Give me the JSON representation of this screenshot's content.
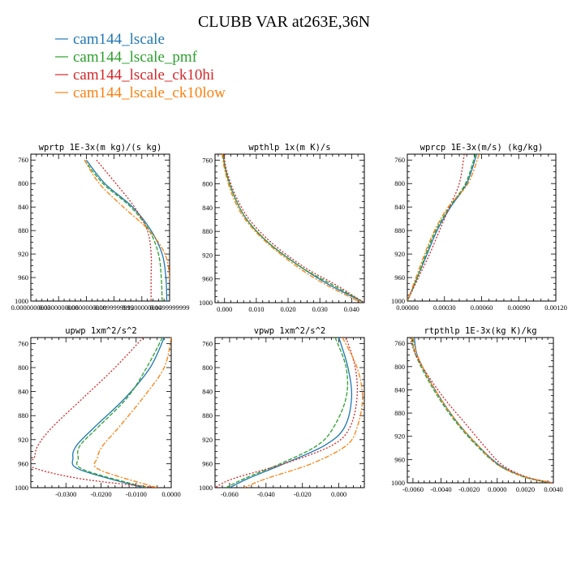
{
  "figure": {
    "title": "CLUBB VAR at263E,36N"
  },
  "colors": {
    "cam144_lscale": "#1f77b4",
    "cam144_lscale_pmf": "#2ca02c",
    "cam144_lscale_ck10hi": "#d62728",
    "cam144_lscale_ck10low": "#ff7f0e"
  },
  "legend": [
    {
      "label": "cam144_lscale",
      "color": "#1f77b4"
    },
    {
      "label": "cam144_lscale_pmf",
      "color": "#2ca02c"
    },
    {
      "label": "cam144_lscale_ck10hi",
      "color": "#d62728"
    },
    {
      "label": "cam144_lscale_ck10low",
      "color": "#ff7f0e"
    }
  ],
  "chart_data": [
    {
      "type": "line",
      "title": "wprtp  1E-3x(m kg)/(s kg)",
      "xlim": [
        0.0,
        0.15
      ],
      "ylim": [
        1000,
        750
      ],
      "x_ticks": [
        0.0,
        0.03,
        0.06,
        0.09,
        0.12,
        0.15
      ],
      "x_tick_labels": [
        "0.0000000000",
        "0.0300000000",
        "0.0600000000",
        "0.0899999999",
        "0.1200000000",
        "0.1499999999"
      ],
      "y_ticks": [
        760,
        800,
        840,
        880,
        920,
        960,
        1000
      ],
      "series": [
        {
          "name": "cam144_lscale",
          "y": [
            760,
            800,
            840,
            880,
            920,
            960,
            1000
          ],
          "x": [
            0.06,
            0.08,
            0.11,
            0.13,
            0.142,
            0.146,
            0.147
          ]
        },
        {
          "name": "cam144_lscale_pmf",
          "y": [
            760,
            800,
            840,
            880,
            920,
            960,
            1000
          ],
          "x": [
            0.058,
            0.078,
            0.108,
            0.128,
            0.138,
            0.141,
            0.142
          ]
        },
        {
          "name": "cam144_lscale_ck10hi",
          "y": [
            760,
            800,
            840,
            880,
            920,
            960,
            1000
          ],
          "x": [
            0.071,
            0.092,
            0.112,
            0.126,
            0.13,
            0.13,
            0.13
          ]
        },
        {
          "name": "cam144_lscale_ck10low",
          "y": [
            760,
            800,
            840,
            880,
            920,
            960,
            1000
          ],
          "x": [
            0.058,
            0.074,
            0.1,
            0.128,
            0.145,
            0.15,
            0.151
          ]
        }
      ]
    },
    {
      "type": "line",
      "title": "wpthlp  1x(m K)/s",
      "xlim": [
        -0.003,
        0.044
      ],
      "ylim": [
        1000,
        750
      ],
      "x_ticks": [
        0.0,
        0.01,
        0.02,
        0.03,
        0.04
      ],
      "x_tick_labels": [
        "0.000",
        "0.010",
        "0.020",
        "0.030",
        "0.040"
      ],
      "y_ticks": [
        760,
        800,
        840,
        880,
        920,
        960,
        1000
      ],
      "series": [
        {
          "name": "cam144_lscale",
          "y": [
            750,
            780,
            820,
            860,
            900,
            940,
            970,
            1000
          ],
          "x": [
            -0.0005,
            0.0005,
            0.003,
            0.007,
            0.014,
            0.024,
            0.033,
            0.044
          ]
        },
        {
          "name": "cam144_lscale_pmf",
          "y": [
            750,
            780,
            820,
            860,
            900,
            940,
            970,
            1000
          ],
          "x": [
            -0.0005,
            0.0005,
            0.003,
            0.007,
            0.014,
            0.024,
            0.034,
            0.044
          ]
        },
        {
          "name": "cam144_lscale_ck10hi",
          "y": [
            750,
            780,
            820,
            860,
            900,
            940,
            970,
            1000
          ],
          "x": [
            -0.0003,
            0.0008,
            0.0035,
            0.0078,
            0.015,
            0.025,
            0.035,
            0.044
          ]
        },
        {
          "name": "cam144_lscale_ck10low",
          "y": [
            750,
            780,
            820,
            860,
            900,
            940,
            970,
            1000
          ],
          "x": [
            -0.0008,
            0.0002,
            0.0025,
            0.0065,
            0.0135,
            0.023,
            0.032,
            0.043
          ]
        }
      ]
    },
    {
      "type": "line",
      "title": "wprcp  1E-3x(m/s) (kg/kg)",
      "xlim": [
        0.0,
        0.0012
      ],
      "ylim": [
        1000,
        750
      ],
      "x_ticks": [
        0.0,
        0.0003,
        0.0006,
        0.0009,
        0.0012
      ],
      "x_tick_labels": [
        "0.00000",
        "0.00030",
        "0.00060",
        "0.00090",
        "0.00120"
      ],
      "y_ticks": [
        760,
        800,
        840,
        880,
        920,
        960,
        1000
      ],
      "series": [
        {
          "name": "cam144_lscale",
          "y": [
            750,
            800,
            840,
            880,
            920,
            960,
            1000
          ],
          "x": [
            0.00056,
            0.00048,
            0.00035,
            0.00024,
            0.00016,
            8e-05,
            0.0
          ]
        },
        {
          "name": "cam144_lscale_pmf",
          "y": [
            750,
            800,
            840,
            880,
            920,
            960,
            1000
          ],
          "x": [
            0.00055,
            0.00047,
            0.00034,
            0.00023,
            0.00015,
            8e-05,
            0.0
          ]
        },
        {
          "name": "cam144_lscale_ck10hi",
          "y": [
            750,
            800,
            840,
            880,
            920,
            960,
            1000
          ],
          "x": [
            0.00046,
            0.00042,
            0.00034,
            0.00026,
            0.00018,
            9e-05,
            0.0
          ]
        },
        {
          "name": "cam144_lscale_ck10low",
          "y": [
            750,
            800,
            840,
            880,
            920,
            960,
            1000
          ],
          "x": [
            0.00058,
            0.00049,
            0.00033,
            0.00022,
            0.00014,
            7e-05,
            0.0
          ]
        }
      ]
    },
    {
      "type": "line",
      "title": "upwp  1xm^2/s^2",
      "xlim": [
        -0.04,
        0.0
      ],
      "ylim": [
        1000,
        750
      ],
      "x_ticks": [
        -0.03,
        -0.02,
        -0.01,
        0.0
      ],
      "x_tick_labels": [
        "-0.0300",
        "-0.0200",
        "-0.0100",
        "0.0000"
      ],
      "y_ticks": [
        760,
        800,
        840,
        880,
        920,
        960,
        1000
      ],
      "series": [
        {
          "name": "cam144_lscale",
          "y": [
            750,
            800,
            850,
            900,
            930,
            950,
            970,
            1000
          ],
          "x": [
            -0.002,
            -0.006,
            -0.013,
            -0.022,
            -0.027,
            -0.028,
            -0.026,
            -0.008
          ]
        },
        {
          "name": "cam144_lscale_pmf",
          "y": [
            750,
            800,
            850,
            900,
            930,
            950,
            970,
            1000
          ],
          "x": [
            -0.0025,
            -0.007,
            -0.0125,
            -0.021,
            -0.026,
            -0.0265,
            -0.025,
            -0.007
          ]
        },
        {
          "name": "cam144_lscale_ck10hi",
          "y": [
            750,
            800,
            850,
            900,
            930,
            950,
            965,
            985,
            1000
          ],
          "x": [
            -0.008,
            -0.016,
            -0.025,
            -0.034,
            -0.038,
            -0.039,
            -0.04,
            -0.026,
            -0.004
          ]
        },
        {
          "name": "cam144_lscale_ck10low",
          "y": [
            750,
            800,
            850,
            900,
            930,
            950,
            970,
            1000
          ],
          "x": [
            0.0,
            -0.002,
            -0.008,
            -0.015,
            -0.0195,
            -0.021,
            -0.0205,
            -0.004
          ]
        }
      ]
    },
    {
      "type": "line",
      "title": "vpwp  1xm^2/s^2",
      "xlim": [
        -0.068,
        0.014
      ],
      "ylim": [
        1000,
        750
      ],
      "x_ticks": [
        -0.06,
        -0.04,
        -0.02,
        0.0
      ],
      "x_tick_labels": [
        "-0.060",
        "-0.040",
        "-0.020",
        "0.000"
      ],
      "y_ticks": [
        760,
        800,
        840,
        880,
        920,
        960,
        1000
      ],
      "series": [
        {
          "name": "cam144_lscale",
          "y": [
            750,
            800,
            850,
            900,
            930,
            960,
            985,
            1000
          ],
          "x": [
            0.0,
            0.005,
            0.007,
            0.003,
            -0.008,
            -0.03,
            -0.05,
            -0.06
          ]
        },
        {
          "name": "cam144_lscale_pmf",
          "y": [
            750,
            800,
            850,
            900,
            930,
            960,
            985,
            1000
          ],
          "x": [
            -0.002,
            0.004,
            0.004,
            -0.003,
            -0.012,
            -0.032,
            -0.052,
            -0.062
          ]
        },
        {
          "name": "cam144_lscale_ck10hi",
          "y": [
            750,
            800,
            850,
            900,
            930,
            960,
            985,
            1000
          ],
          "x": [
            0.004,
            0.009,
            0.01,
            0.006,
            -0.004,
            -0.03,
            -0.058,
            -0.068
          ]
        },
        {
          "name": "cam144_lscale_ck10low",
          "y": [
            750,
            800,
            850,
            900,
            930,
            960,
            985,
            1000
          ],
          "x": [
            0.002,
            0.01,
            0.013,
            0.01,
            0.004,
            -0.015,
            -0.04,
            -0.052
          ]
        }
      ]
    },
    {
      "type": "line",
      "title": "rtpthlp  1E-3x(kg K)/kg",
      "xlim": [
        -0.0064,
        0.004
      ],
      "ylim": [
        1000,
        750
      ],
      "x_ticks": [
        -0.006,
        -0.004,
        -0.002,
        0.0,
        0.002,
        0.004
      ],
      "x_tick_labels": [
        "-0.0060",
        "-0.0040",
        "-0.0020",
        "0.0000",
        "0.0020",
        "0.0040"
      ],
      "y_ticks": [
        760,
        800,
        840,
        880,
        920,
        960,
        1000
      ],
      "series": [
        {
          "name": "cam144_lscale",
          "y": [
            750,
            780,
            820,
            860,
            900,
            940,
            970,
            990,
            1000
          ],
          "x": [
            -0.0059,
            -0.0057,
            -0.0049,
            -0.0039,
            -0.0027,
            -0.0012,
            0.0002,
            0.002,
            0.0039
          ]
        },
        {
          "name": "cam144_lscale_pmf",
          "y": [
            750,
            780,
            820,
            860,
            900,
            940,
            970,
            990,
            1000
          ],
          "x": [
            -0.0061,
            -0.0058,
            -0.005,
            -0.004,
            -0.0028,
            -0.0013,
            0.0001,
            0.0019,
            0.0038
          ]
        },
        {
          "name": "cam144_lscale_ck10hi",
          "y": [
            750,
            780,
            820,
            860,
            900,
            940,
            970,
            990,
            1000
          ],
          "x": [
            -0.0062,
            -0.0058,
            -0.0048,
            -0.0036,
            -0.0022,
            -0.0008,
            0.0004,
            0.0021,
            0.004
          ]
        },
        {
          "name": "cam144_lscale_ck10low",
          "y": [
            750,
            780,
            820,
            860,
            900,
            940,
            970,
            990,
            1000
          ],
          "x": [
            -0.006,
            -0.0057,
            -0.0049,
            -0.0039,
            -0.0027,
            -0.0012,
            0.0001,
            0.002,
            0.0039
          ]
        }
      ]
    }
  ]
}
